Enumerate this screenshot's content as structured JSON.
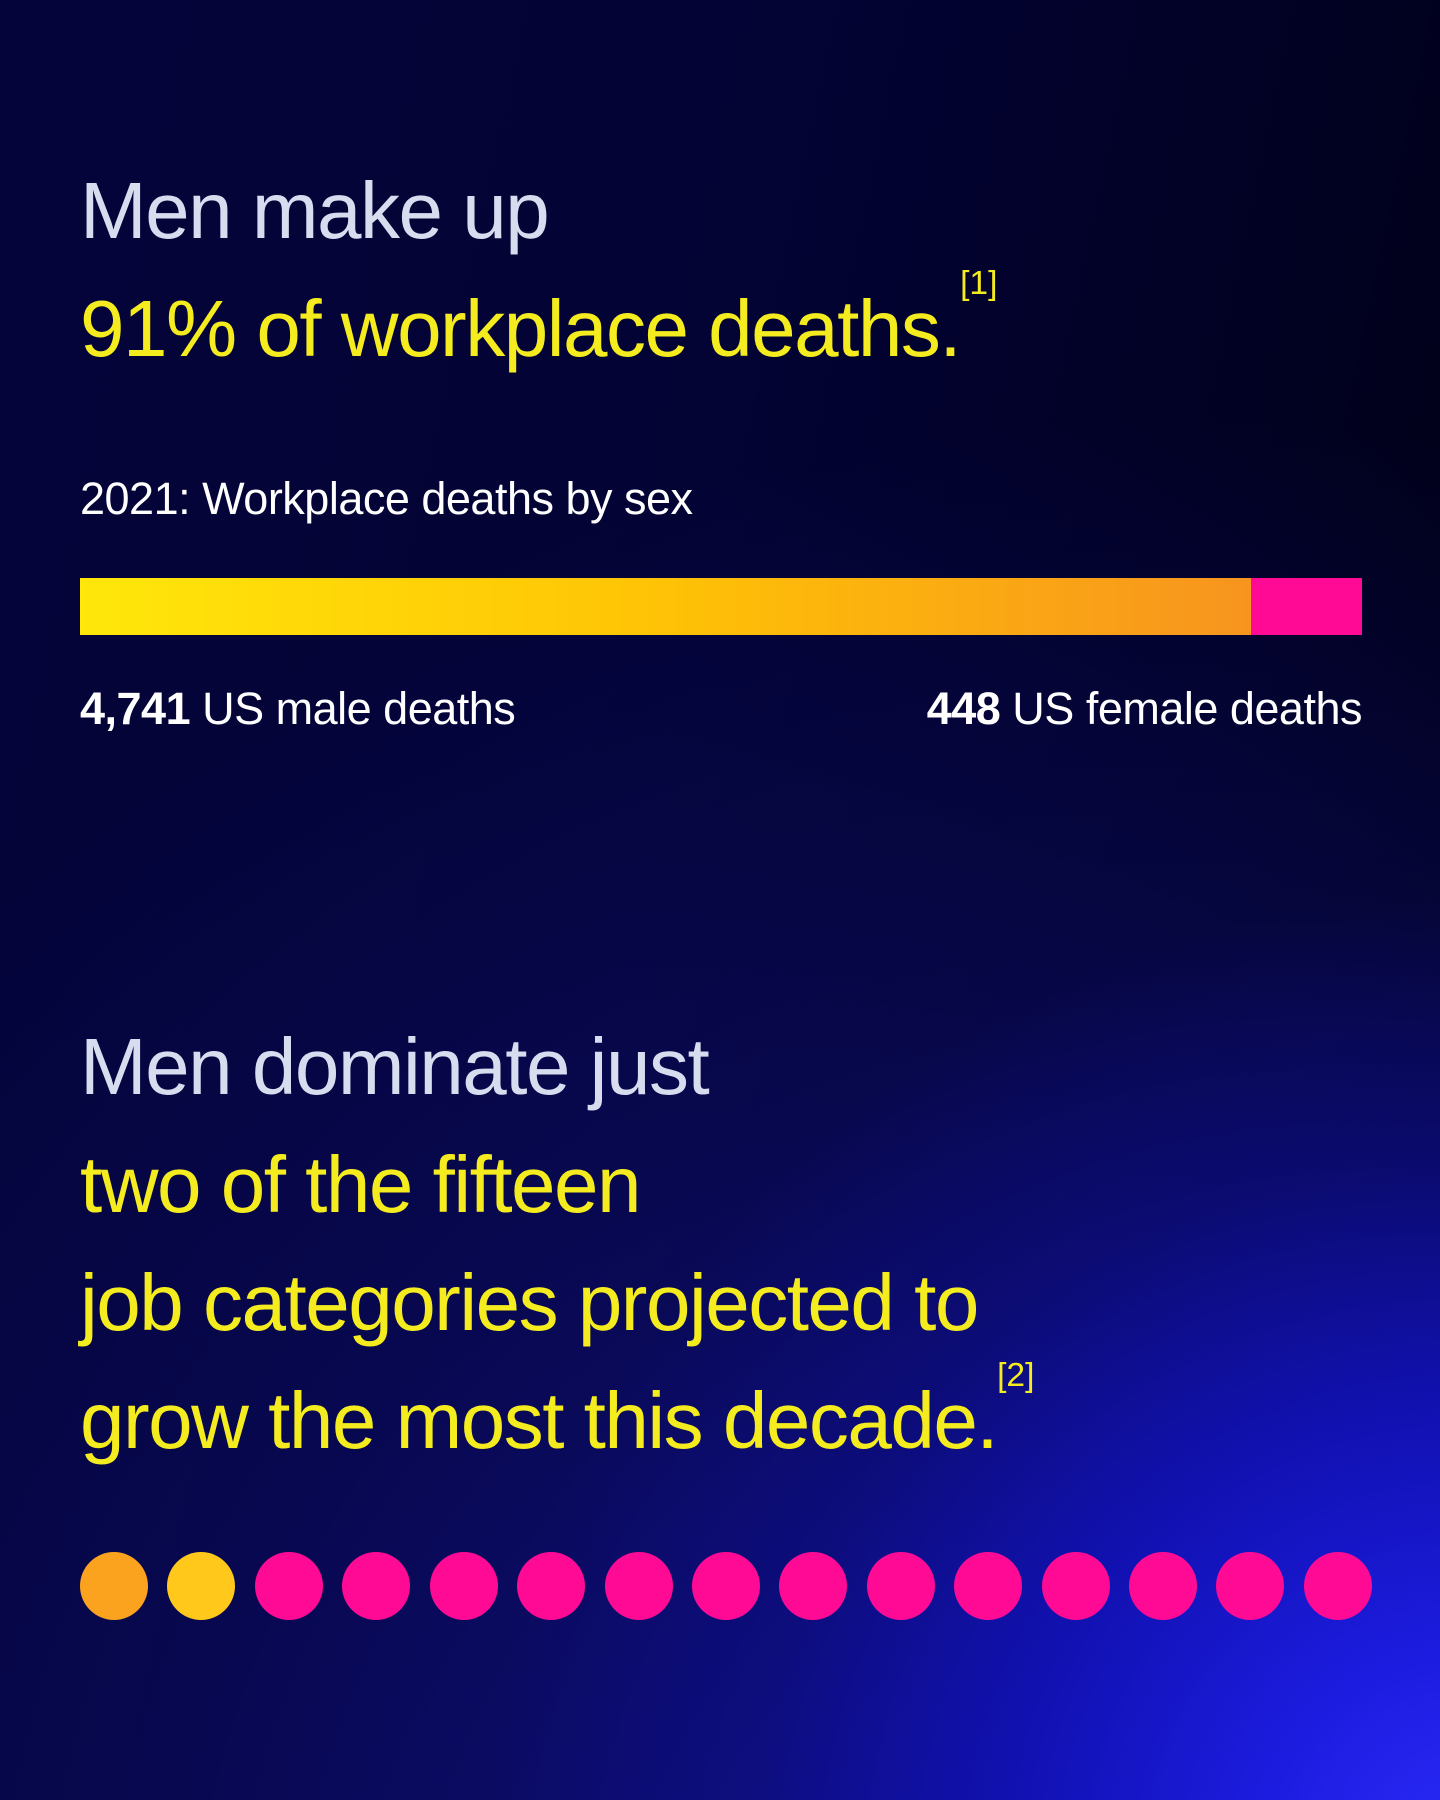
{
  "colors": {
    "background_base_navy": "#03032F",
    "background_corner_glow": "#2B2BFA",
    "headline_muted": "#D8DCEF",
    "headline_highlight_yellow": "#F5EC1F",
    "white_text": "#FFFFFF",
    "bar_male_gradient_start": "#FFE70A",
    "bar_male_gradient_mid": "#FFC405",
    "bar_male_gradient_end": "#F7941E",
    "bar_female_pink": "#FF0A95",
    "dot_orange": "#FBA31F",
    "dot_gold": "#FFC81B",
    "dot_pink": "#FF0A95"
  },
  "section1": {
    "headline_muted": "Men make up",
    "headline_highlight": "91% of workplace deaths.",
    "footnote_marker": "[1]",
    "chart_title_prefix": "2021:",
    "chart_title_rest": " Workplace deaths by sex",
    "male_value": "4,741",
    "male_label": " US male deaths",
    "female_value": "448",
    "female_label": " US female deaths"
  },
  "section2": {
    "headline_muted": "Men dominate just",
    "headline_highlight_line1": "two of the fifteen",
    "headline_highlight_line2": "job categories projected to",
    "headline_highlight_line3": "grow the most this decade.",
    "footnote_marker": "[2]"
  },
  "chart_data": [
    {
      "type": "bar",
      "orientation": "horizontal-stacked",
      "title": "2021: Workplace deaths by sex",
      "categories": [
        "US male deaths",
        "US female deaths"
      ],
      "values": [
        4741,
        448
      ],
      "formatted_values": [
        "4,741",
        "448"
      ],
      "percent_male": 91.4,
      "legend_position": "below-bar-ends",
      "grid": false,
      "colors": [
        "linear-gradient yellow #FFE70A to orange #F7941E",
        "#FF0A95"
      ]
    },
    {
      "type": "unit-dot-row",
      "context": "Fifteen job categories projected to grow the most this decade; two are male-dominated",
      "total_units": 15,
      "male_dominated_units": 2,
      "female_dominated_units": 13,
      "dot_colors": [
        "#FBA31F",
        "#FFC81B",
        "#FF0A95",
        "#FF0A95",
        "#FF0A95",
        "#FF0A95",
        "#FF0A95",
        "#FF0A95",
        "#FF0A95",
        "#FF0A95",
        "#FF0A95",
        "#FF0A95",
        "#FF0A95",
        "#FF0A95",
        "#FF0A95"
      ]
    }
  ]
}
